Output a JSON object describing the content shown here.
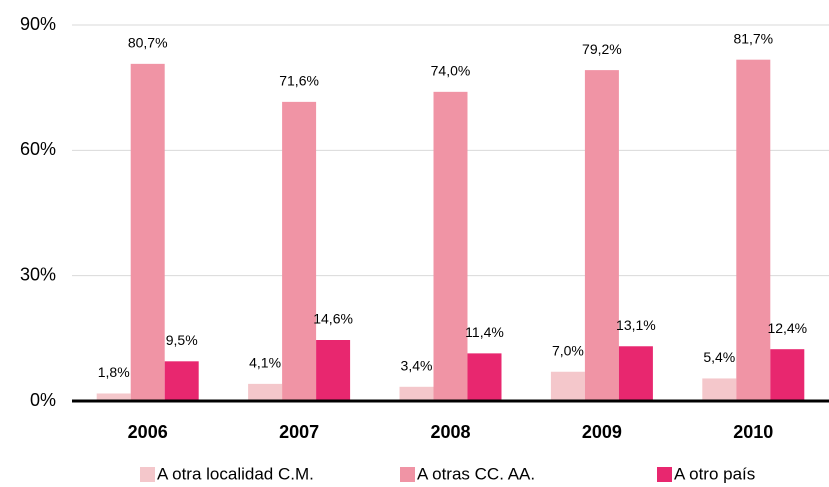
{
  "chart_data": {
    "type": "bar",
    "categories": [
      "2006",
      "2007",
      "2008",
      "2009",
      "2010"
    ],
    "series": [
      {
        "name": "A otra localidad C.M.",
        "color": "#f4c7cb",
        "values": [
          1.8,
          4.1,
          3.4,
          7.0,
          5.4
        ],
        "value_labels": [
          "1,8%",
          "4,1%",
          "3,4%",
          "7,0%",
          "5,4%"
        ]
      },
      {
        "name": "A otras CC. AA.",
        "color": "#f094a5",
        "values": [
          80.7,
          71.6,
          74.0,
          79.2,
          81.7
        ],
        "value_labels": [
          "80,7%",
          "71,6%",
          "74,0%",
          "79,2%",
          "81,7%"
        ]
      },
      {
        "name": "A otro país",
        "color": "#e8276f",
        "values": [
          9.5,
          14.6,
          11.4,
          13.1,
          12.4
        ],
        "value_labels": [
          "9,5%",
          "14,6%",
          "11,4%",
          "13,1%",
          "12,4%"
        ]
      }
    ],
    "ylim": [
      0,
      90
    ],
    "yticks": [
      {
        "value": 0,
        "label": "0%"
      },
      {
        "value": 30,
        "label": "30%"
      },
      {
        "value": 60,
        "label": "60%"
      },
      {
        "value": 90,
        "label": "90%"
      }
    ],
    "grid": true,
    "legend": "bottom"
  }
}
